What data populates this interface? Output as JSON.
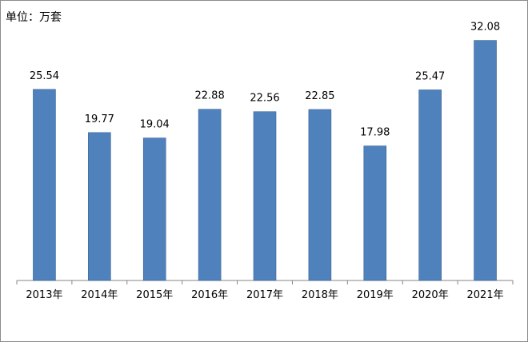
{
  "unit_label": "单位：万套",
  "colors": {
    "bar": "#4F81BD",
    "bar_edge": "#3A6593",
    "axis": "#868686"
  },
  "chart_data": {
    "type": "bar",
    "categories": [
      "2013年",
      "2014年",
      "2015年",
      "2016年",
      "2017年",
      "2018年",
      "2019年",
      "2020年",
      "2021年"
    ],
    "values": [
      25.54,
      19.77,
      19.04,
      22.88,
      22.56,
      22.85,
      17.98,
      25.47,
      32.08
    ],
    "value_labels": [
      "25.54",
      "19.77",
      "19.04",
      "22.88",
      "22.56",
      "22.85",
      "17.98",
      "25.47",
      "32.08"
    ],
    "title": "",
    "xlabel": "",
    "ylabel": "",
    "legend": "none",
    "grid": false
  }
}
